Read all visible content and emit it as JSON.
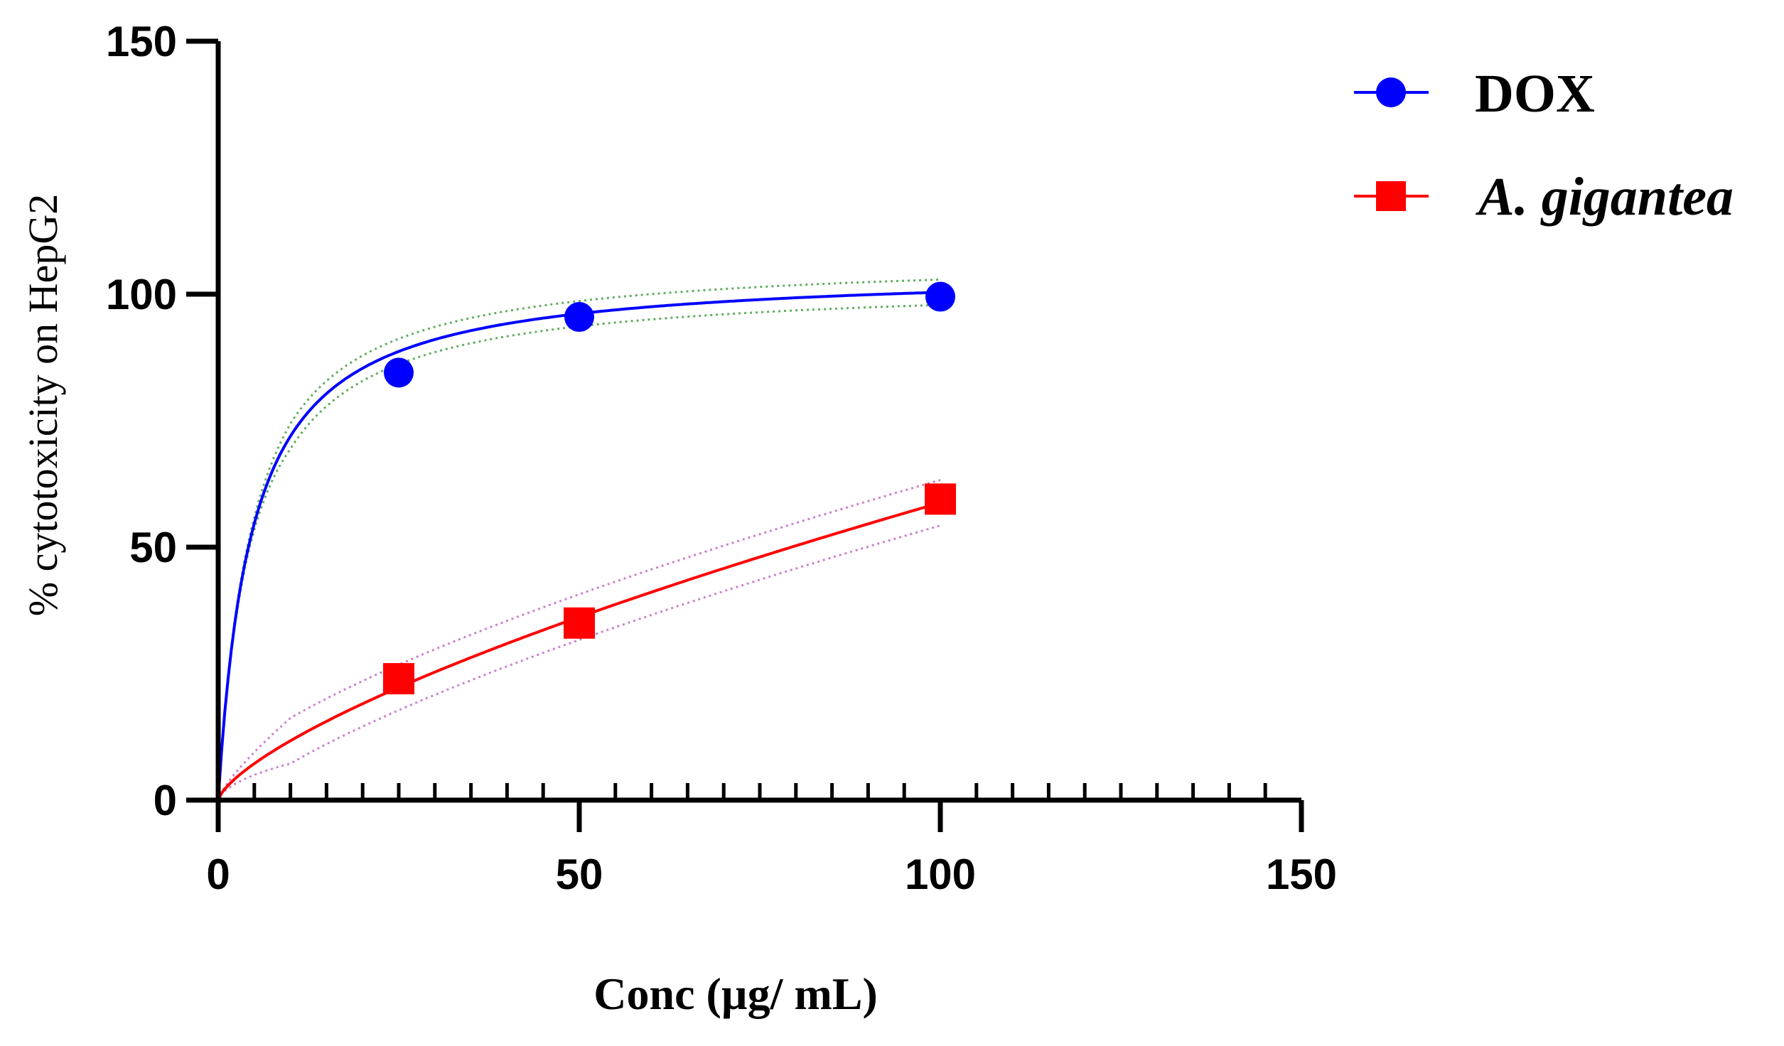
{
  "chart_data": {
    "type": "line",
    "title": "",
    "xlabel": "Conc (µg/ mL)",
    "ylabel": "% cytotoxicity on HepG2",
    "xlim": [
      0,
      150
    ],
    "ylim": [
      0,
      150
    ],
    "xticks": [
      "0",
      "50",
      "100",
      "150"
    ],
    "yticks": [
      "0",
      "50",
      "100",
      "150"
    ],
    "x_minor_step": 5,
    "legend_position": "top-right",
    "series": [
      {
        "name": "DOX",
        "marker": "circle",
        "color": "#0000ff",
        "confidence_color": "#3a9a3a",
        "x": [
          25,
          50,
          100
        ],
        "values": [
          84.5,
          95.5,
          99.5
        ],
        "fit": {
          "model": "hyperbolic",
          "vmax": 105,
          "half": 4.6
        },
        "band_halfwidth": 2.5
      },
      {
        "name": "A. gigantea",
        "marker": "square",
        "color": "#ff0000",
        "confidence_color": "#c060c0",
        "x": [
          25,
          50,
          100
        ],
        "values": [
          24,
          35,
          59.5
        ],
        "fit": {
          "model": "power",
          "a": 2.34,
          "b": 0.7
        },
        "band_halfwidth": 4.5
      }
    ]
  }
}
